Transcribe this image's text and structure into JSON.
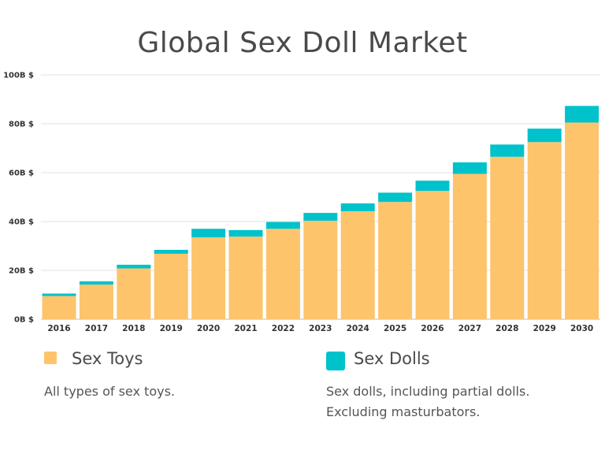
{
  "chart_data": {
    "type": "bar",
    "stacked": true,
    "title": "Global Sex Doll Market",
    "categories": [
      "2016",
      "2017",
      "2018",
      "2019",
      "2020",
      "2021",
      "2022",
      "2023",
      "2024",
      "2025",
      "2026",
      "2027",
      "2028",
      "2029",
      "2030"
    ],
    "series": [
      {
        "name": "Sex Toys",
        "color": "#fdc46c",
        "values": [
          9.5,
          14.2,
          20.8,
          26.8,
          33.5,
          33.8,
          37.0,
          40.3,
          44.2,
          48.0,
          52.5,
          59.5,
          66.5,
          72.5,
          80.5
        ]
      },
      {
        "name": "Sex Dolls",
        "color": "#00c2cb",
        "values": [
          1.0,
          1.3,
          1.5,
          1.6,
          3.5,
          2.7,
          2.8,
          3.2,
          3.2,
          3.8,
          4.2,
          4.7,
          5.0,
          5.5,
          6.8
        ]
      }
    ],
    "yticks": [
      "0B $",
      "20B $",
      "40B $",
      "60B $",
      "80B $",
      "100B $"
    ],
    "ylim": [
      0,
      100
    ],
    "grid": true,
    "xlabel": "",
    "ylabel": ""
  },
  "legend": {
    "items": [
      {
        "label": "Sex Toys",
        "description": "All types of sex toys.",
        "color": "#fdc46c"
      },
      {
        "label": "Sex Dolls",
        "description": "Sex dolls, including partial dolls. Excluding masturbators.",
        "color": "#00c2cb"
      }
    ]
  }
}
